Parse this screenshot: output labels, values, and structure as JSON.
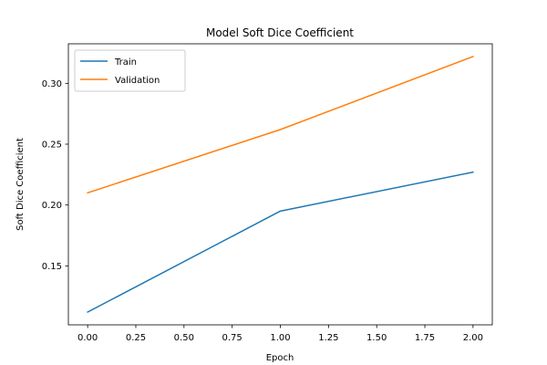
{
  "chart_data": {
    "type": "line",
    "title": "Model Soft Dice Coefficient",
    "xlabel": "Epoch",
    "ylabel": "Soft Dice Coefficient",
    "x": [
      0,
      1,
      2
    ],
    "series": [
      {
        "name": "Train",
        "values": [
          0.112,
          0.195,
          0.227
        ],
        "color": "#1f77b4"
      },
      {
        "name": "Validation",
        "values": [
          0.21,
          0.262,
          0.322
        ],
        "color": "#ff7f0e"
      }
    ],
    "xlim": [
      -0.1,
      2.1
    ],
    "ylim": [
      0.1015,
      0.3325
    ],
    "xticks": [
      0.0,
      0.25,
      0.5,
      0.75,
      1.0,
      1.25,
      1.5,
      1.75,
      2.0
    ],
    "xtick_labels": [
      "0.00",
      "0.25",
      "0.50",
      "0.75",
      "1.00",
      "1.25",
      "1.50",
      "1.75",
      "2.00"
    ],
    "yticks": [
      0.15,
      0.2,
      0.25,
      0.3
    ],
    "ytick_labels": [
      "0.15",
      "0.20",
      "0.25",
      "0.30"
    ],
    "grid": false,
    "legend_position": "top-left"
  }
}
